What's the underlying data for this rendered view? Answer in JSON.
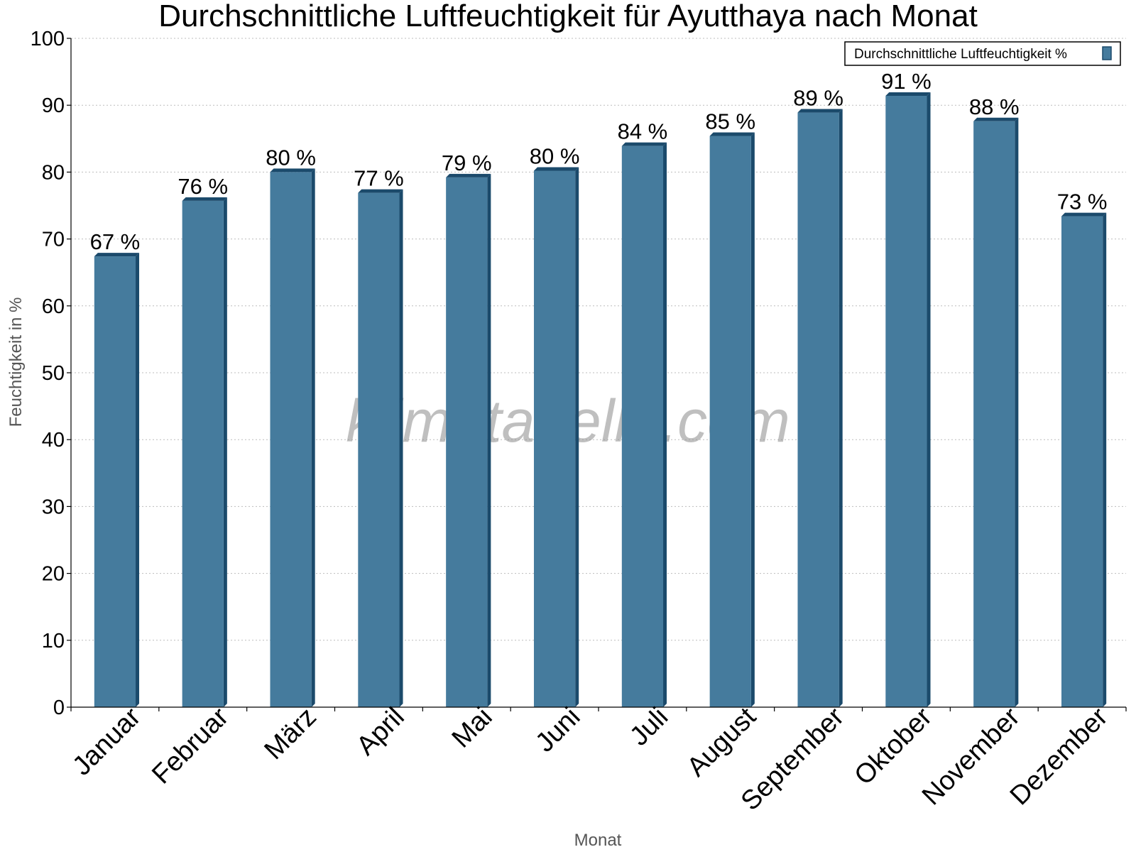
{
  "chart_data": {
    "type": "bar",
    "title": "Durchschnittliche Luftfeuchtigkeit für Ayutthaya nach Monat",
    "xlabel": "Monat",
    "ylabel": "Feuchtigkeit in %",
    "ylim": [
      0,
      100
    ],
    "yticks": [
      "0",
      "10",
      "20",
      "30",
      "40",
      "50",
      "60",
      "70",
      "80",
      "90",
      "100"
    ],
    "grid": true,
    "legend_position": "top-right",
    "categories": [
      "Januar",
      "Februar",
      "März",
      "April",
      "Mai",
      "Juni",
      "Juli",
      "August",
      "September",
      "Oktober",
      "November",
      "Dezember"
    ],
    "series": [
      {
        "name": "Durchschnittliche Luftfeuchtigkeit %",
        "color": "#457b9d",
        "values": [
          67.4,
          75.7,
          80,
          76.9,
          79.2,
          80.2,
          83.9,
          85.4,
          88.9,
          91.4,
          87.6,
          73.4
        ],
        "labels": [
          "67 %",
          "76 %",
          "80 %",
          "77 %",
          "79 %",
          "80 %",
          "84 %",
          "85 %",
          "89 %",
          "91 %",
          "88 %",
          "73 %"
        ]
      }
    ],
    "watermark": "klimatabelle.com"
  }
}
